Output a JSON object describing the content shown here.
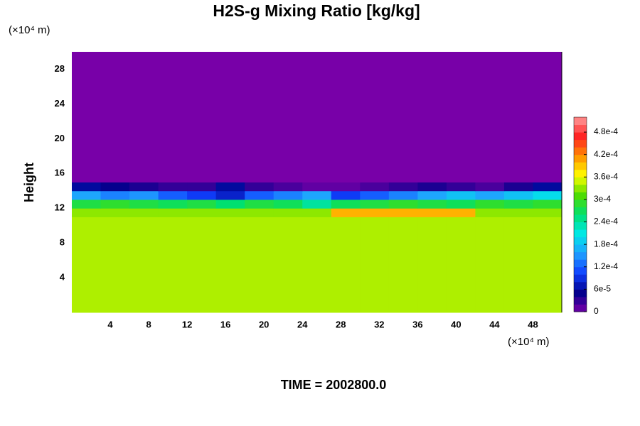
{
  "chart_data": {
    "type": "heatmap",
    "title": "H2S-g Mixing Ratio [kg/kg]",
    "y_label": "Height",
    "y_unit": "(×10⁴ m)",
    "x_unit": "(×10⁴ m)",
    "footer": "TIME = 2002800.0",
    "xlim": [
      0,
      51
    ],
    "ylim": [
      0,
      30
    ],
    "xticks": [
      4,
      8,
      12,
      16,
      20,
      24,
      28,
      32,
      36,
      40,
      44,
      48
    ],
    "yticks": [
      4,
      8,
      12,
      16,
      20,
      24,
      28
    ],
    "x_edges": [
      0,
      3,
      6,
      9,
      12,
      15,
      18,
      21,
      24,
      27,
      30,
      33,
      36,
      39,
      42,
      45,
      48,
      51
    ],
    "y_edges": [
      0,
      11,
      12,
      13,
      14,
      15,
      30
    ],
    "z": [
      [
        0.00034,
        0.00034,
        0.00034,
        0.00034,
        0.00034,
        0.00034,
        0.00034,
        0.00034,
        0.00034,
        0.00034,
        0.00034,
        0.00034,
        0.00034,
        0.00034,
        0.00034,
        0.00034,
        0.00034
      ],
      [
        0.00033,
        0.00033,
        0.00033,
        0.00033,
        0.00033,
        0.00033,
        0.00033,
        0.00033,
        0.00033,
        0.0004,
        0.0004,
        0.0004,
        0.0004,
        0.0004,
        0.00033,
        0.00033,
        0.00033
      ],
      [
        0.00028,
        0.00029,
        0.00028,
        0.00027,
        0.00028,
        0.00026,
        0.00028,
        0.00027,
        0.00024,
        0.00027,
        0.00028,
        0.00029,
        0.00028,
        0.00027,
        0.00029,
        0.00028,
        0.00029
      ],
      [
        0.00016,
        0.00014,
        0.00015,
        0.00012,
        0.0001,
        8e-05,
        0.00012,
        0.00014,
        0.00016,
        0.0001,
        0.00012,
        0.00014,
        0.00016,
        0.00018,
        0.00016,
        0.00018,
        0.0002
      ],
      [
        6e-05,
        5e-05,
        4e-05,
        3e-05,
        3e-05,
        6e-05,
        3e-05,
        2e-05,
        1e-05,
        1e-05,
        2e-05,
        3e-05,
        4e-05,
        3e-05,
        2e-05,
        4e-05,
        6e-05
      ],
      [
        0,
        0,
        0,
        0,
        0,
        0,
        0,
        0,
        0,
        0,
        0,
        0,
        0,
        0,
        0,
        0,
        0
      ]
    ],
    "colorbar": {
      "lim": [
        0,
        0.00052
      ],
      "ticks": [
        0,
        {
          "value": 6e-05,
          "label": "6e-5"
        },
        {
          "value": 0.00012,
          "label": "1.2e-4"
        },
        {
          "value": 0.00018,
          "label": "1.8e-4"
        },
        {
          "value": 0.00024,
          "label": "2.4e-4"
        },
        {
          "value": 0.0003,
          "label": "3e-4"
        },
        {
          "value": 0.00036,
          "label": "3.6e-4"
        },
        {
          "value": 0.00042,
          "label": "4.2e-4"
        },
        {
          "value": 0.00048,
          "label": "4.8e-4"
        }
      ],
      "colormap": [
        "#7800a8",
        "#00008c",
        "#1040ff",
        "#20a0ff",
        "#00e8e8",
        "#00e070",
        "#50dc00",
        "#ffff00",
        "#ff9000",
        "#ff2020",
        "#ff9a9a"
      ]
    }
  }
}
